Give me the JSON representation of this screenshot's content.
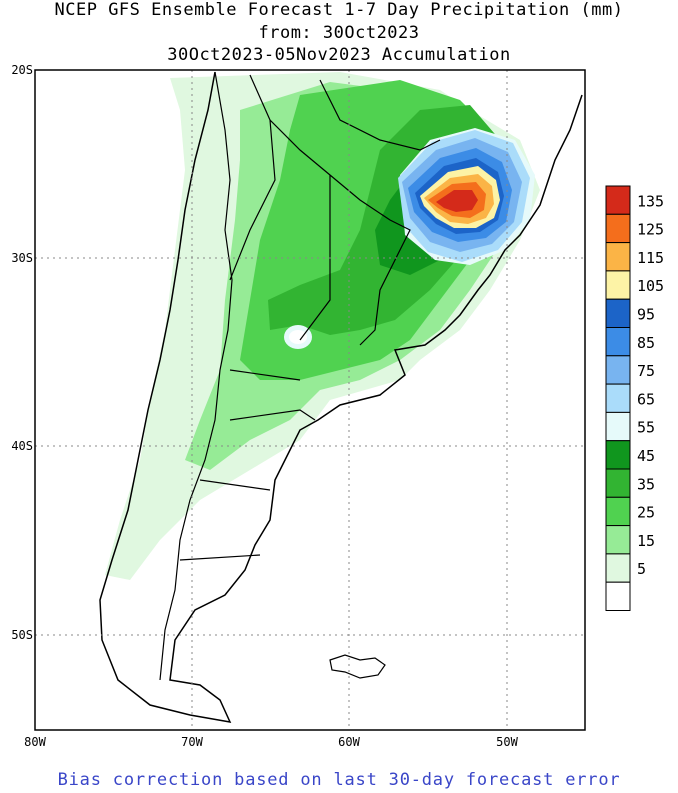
{
  "title": {
    "line1": "NCEP GFS Ensemble Forecast 1-7 Day Precipitation (mm)",
    "line2": "from: 30Oct2023",
    "line3": "30Oct2023-05Nov2023 Accumulation"
  },
  "axes": {
    "lat_labels": [
      "20S",
      "30S",
      "40S",
      "50S"
    ],
    "lon_labels": [
      "80W",
      "70W",
      "60W",
      "50W"
    ]
  },
  "colorbar": {
    "labels": [
      "135",
      "125",
      "115",
      "105",
      "95",
      "85",
      "75",
      "65",
      "55",
      "45",
      "35",
      "25",
      "15",
      "5"
    ],
    "colors": [
      "#d42a1a",
      "#f46e1c",
      "#fbb446",
      "#fdf3a6",
      "#1c64c8",
      "#3c8ce6",
      "#78b4f0",
      "#aadcfa",
      "#e6fafa",
      "#10961e",
      "#32b432",
      "#50d250",
      "#96eb96",
      "#e0f8e0",
      "#ffffff"
    ]
  },
  "footer": "Bias correction based on last 30-day forecast error"
}
